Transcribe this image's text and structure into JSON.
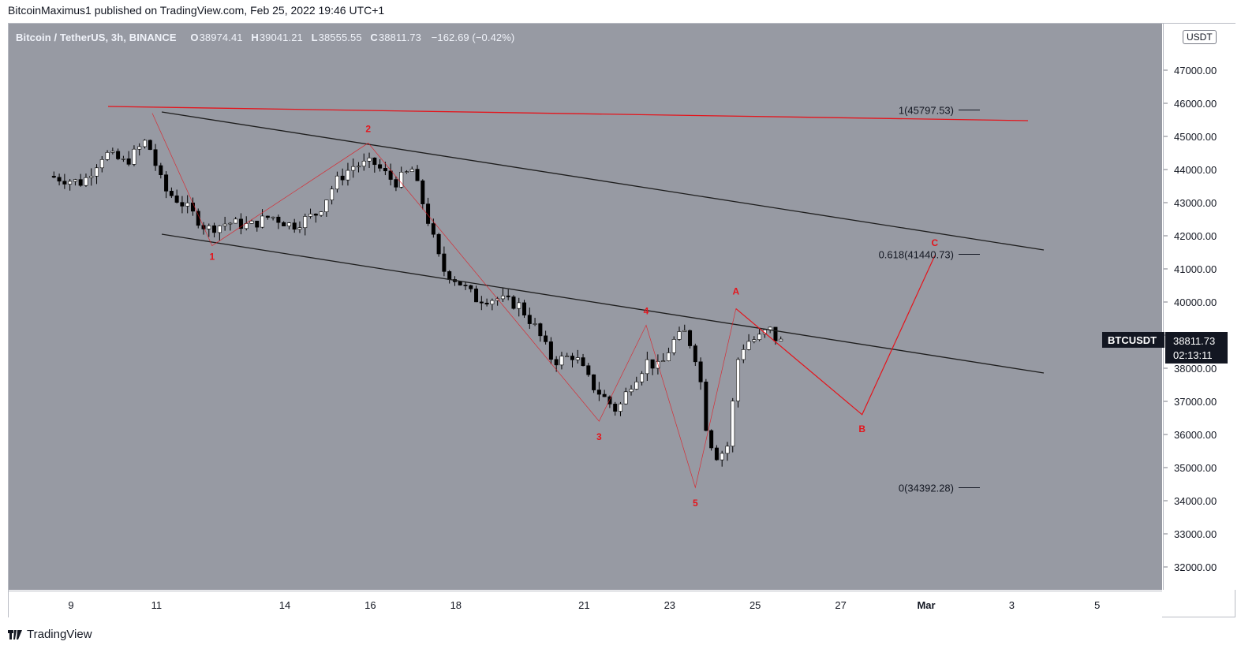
{
  "caption": "BitcoinMaximus1 published on TradingView.com, Feb 25, 2022 19:46 UTC+1",
  "legend": {
    "symbol": "Bitcoin / TetherUS, 3h, BINANCE",
    "o_label": "O",
    "o_value": "38974.41",
    "h_label": "H",
    "h_value": "39041.21",
    "l_label": "L",
    "l_value": "38555.55",
    "c_label": "C",
    "c_value": "38811.73",
    "change": "−162.69 (−0.42%)"
  },
  "price_scale": {
    "currency": "USDT",
    "ticks": [
      "47000.00",
      "46000.00",
      "45000.00",
      "44000.00",
      "43000.00",
      "42000.00",
      "41000.00",
      "40000.00",
      "39000.00",
      "38000.00",
      "37000.00",
      "36000.00",
      "35000.00",
      "34000.00",
      "33000.00",
      "32000.00"
    ],
    "ticker_label": "BTCUSDT",
    "last_price": "38811.73",
    "countdown": "02:13:11"
  },
  "time_scale": {
    "ticks": [
      "9",
      "11",
      "14",
      "16",
      "18",
      "21",
      "23",
      "25",
      "27",
      "Mar",
      "3",
      "5"
    ]
  },
  "fib_labels": {
    "level_1": "1(45797.53)",
    "level_0618": "0.618(41440.73)",
    "level_0": "0(34392.28)"
  },
  "wave_labels": [
    "1",
    "2",
    "3",
    "4",
    "5",
    "A",
    "B",
    "C"
  ],
  "colors": {
    "background": "#979aa3",
    "up": "#ffffff",
    "down": "#000000",
    "annotation": "#e5141b",
    "trendline": "#1e1e1e"
  },
  "footer": {
    "brand": "TradingView"
  },
  "chart_data": {
    "type": "candlestick",
    "title": "Bitcoin / TetherUS, 3h, BINANCE",
    "ylim": [
      31500,
      48000
    ],
    "y_unit": "USDT",
    "last_close": 38811.73,
    "fib_levels": [
      {
        "ratio": 1,
        "price": 45797.53
      },
      {
        "ratio": 0.618,
        "price": 41440.73
      },
      {
        "ratio": 0,
        "price": 34392.28
      }
    ],
    "wave_points": [
      {
        "label": "1",
        "date": "Feb 12",
        "price": 41700
      },
      {
        "label": "2",
        "date": "Feb 16",
        "price": 44800
      },
      {
        "label": "3",
        "date": "Feb 22",
        "price": 36400
      },
      {
        "label": "4",
        "date": "Feb 23",
        "price": 39300
      },
      {
        "label": "5",
        "date": "Feb 24",
        "price": 34400
      },
      {
        "label": "A",
        "date": "Feb 25",
        "price": 39800
      },
      {
        "label": "B",
        "date": "Feb 28",
        "price": 36600
      },
      {
        "label": "C",
        "date": "Mar 2",
        "price": 41400
      }
    ],
    "grid": false
  }
}
